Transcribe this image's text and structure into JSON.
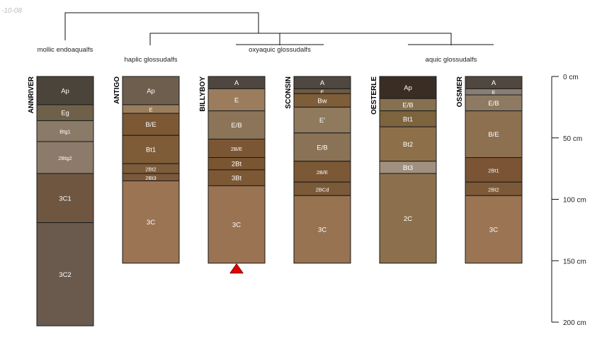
{
  "stamp": "-10-08",
  "groups": [
    {
      "label": "mollic endoaqualfs"
    },
    {
      "label": "haplic glossudalfs"
    },
    {
      "label": "oxyaquic glossudalfs"
    },
    {
      "label": "aquic glossudalfs"
    }
  ],
  "depth_axis": {
    "unit": "cm",
    "ticks": [
      {
        "depth": 0,
        "label": "0 cm"
      },
      {
        "depth": 50,
        "label": "50 cm"
      },
      {
        "depth": 100,
        "label": "100 cm"
      },
      {
        "depth": 150,
        "label": "150 cm"
      },
      {
        "depth": 200,
        "label": "200 cm"
      }
    ]
  },
  "chart_data": {
    "type": "soil-profile-sketch",
    "depth_range": [
      0,
      200
    ],
    "profiles": [
      {
        "name": "ANNRIVER",
        "horizons": [
          {
            "name": "Ap",
            "top": 0,
            "bottom": 23,
            "color": "#4a443a"
          },
          {
            "name": "Eg",
            "top": 23,
            "bottom": 36,
            "color": "#6e6049"
          },
          {
            "name": "Btg1",
            "top": 36,
            "bottom": 53,
            "color": "#8a7b68"
          },
          {
            "name": "2Btg2",
            "top": 53,
            "bottom": 79,
            "color": "#8c7a6b"
          },
          {
            "name": "3C1",
            "top": 79,
            "bottom": 119,
            "color": "#6e5641"
          },
          {
            "name": "3C2",
            "top": 119,
            "bottom": 203,
            "color": "#6a5a4e"
          }
        ]
      },
      {
        "name": "ANTIGO",
        "horizons": [
          {
            "name": "Ap",
            "top": 0,
            "bottom": 23,
            "color": "#6e5e4e"
          },
          {
            "name": "E",
            "top": 23,
            "bottom": 30,
            "color": "#9a7d5d"
          },
          {
            "name": "B/E",
            "top": 30,
            "bottom": 48,
            "color": "#7c5834"
          },
          {
            "name": "Bt1",
            "top": 48,
            "bottom": 71,
            "color": "#7d5c37"
          },
          {
            "name": "2Bt2",
            "top": 71,
            "bottom": 79,
            "color": "#7d5b3b"
          },
          {
            "name": "2Bt3",
            "top": 79,
            "bottom": 85,
            "color": "#7b583a"
          },
          {
            "name": "3C",
            "top": 85,
            "bottom": 152,
            "color": "#9b7454"
          }
        ]
      },
      {
        "name": "BILLYBOY",
        "horizons": [
          {
            "name": "A",
            "top": 0,
            "bottom": 10,
            "color": "#4f4640"
          },
          {
            "name": "E",
            "top": 10,
            "bottom": 28,
            "color": "#9b7c5c"
          },
          {
            "name": "E/B",
            "top": 28,
            "bottom": 51,
            "color": "#8b7458"
          },
          {
            "name": "2B/E",
            "top": 51,
            "bottom": 66,
            "color": "#7b5634"
          },
          {
            "name": "2Bt",
            "top": 66,
            "bottom": 76,
            "color": "#7a5532"
          },
          {
            "name": "3Bt",
            "top": 76,
            "bottom": 89,
            "color": "#7c5834"
          },
          {
            "name": "3C",
            "top": 89,
            "bottom": 152,
            "color": "#9a7353"
          }
        ],
        "marker": "end-of-description"
      },
      {
        "name": "SCONSIN",
        "horizons": [
          {
            "name": "A",
            "top": 0,
            "bottom": 10,
            "color": "#4f4840"
          },
          {
            "name": "E",
            "top": 10,
            "bottom": 14,
            "color": "#6d5a44"
          },
          {
            "name": "Bw",
            "top": 14,
            "bottom": 25,
            "color": "#7d5e39"
          },
          {
            "name": "E'",
            "top": 25,
            "bottom": 46,
            "color": "#8f7a5e"
          },
          {
            "name": "E/B",
            "top": 46,
            "bottom": 69,
            "color": "#8a7256"
          },
          {
            "name": "2B/E",
            "top": 69,
            "bottom": 86,
            "color": "#7b5836"
          },
          {
            "name": "2BCd",
            "top": 86,
            "bottom": 97,
            "color": "#7b5a38"
          },
          {
            "name": "3C",
            "top": 97,
            "bottom": 152,
            "color": "#977352"
          }
        ]
      },
      {
        "name": "OESTERLE",
        "horizons": [
          {
            "name": "Ap",
            "top": 0,
            "bottom": 18,
            "color": "#3a2e24"
          },
          {
            "name": "E/B",
            "top": 18,
            "bottom": 28,
            "color": "#86704f"
          },
          {
            "name": "Bt1",
            "top": 28,
            "bottom": 41,
            "color": "#7d633e"
          },
          {
            "name": "Bt2",
            "top": 41,
            "bottom": 69,
            "color": "#8d704a"
          },
          {
            "name": "Bt3",
            "top": 69,
            "bottom": 79,
            "color": "#a0907e"
          },
          {
            "name": "2C",
            "top": 79,
            "bottom": 152,
            "color": "#8c704d"
          }
        ]
      },
      {
        "name": "OSSMER",
        "horizons": [
          {
            "name": "A",
            "top": 0,
            "bottom": 10,
            "color": "#504840"
          },
          {
            "name": "E",
            "top": 10,
            "bottom": 15,
            "color": "#8a7d72"
          },
          {
            "name": "E/B",
            "top": 15,
            "bottom": 28,
            "color": "#8e7a62"
          },
          {
            "name": "B/E",
            "top": 28,
            "bottom": 66,
            "color": "#8c7050"
          },
          {
            "name": "2Bt1",
            "top": 66,
            "bottom": 86,
            "color": "#7a5434"
          },
          {
            "name": "2Bt2",
            "top": 86,
            "bottom": 97,
            "color": "#7c5a38"
          },
          {
            "name": "3C",
            "top": 97,
            "bottom": 152,
            "color": "#9b7454"
          }
        ]
      }
    ]
  }
}
